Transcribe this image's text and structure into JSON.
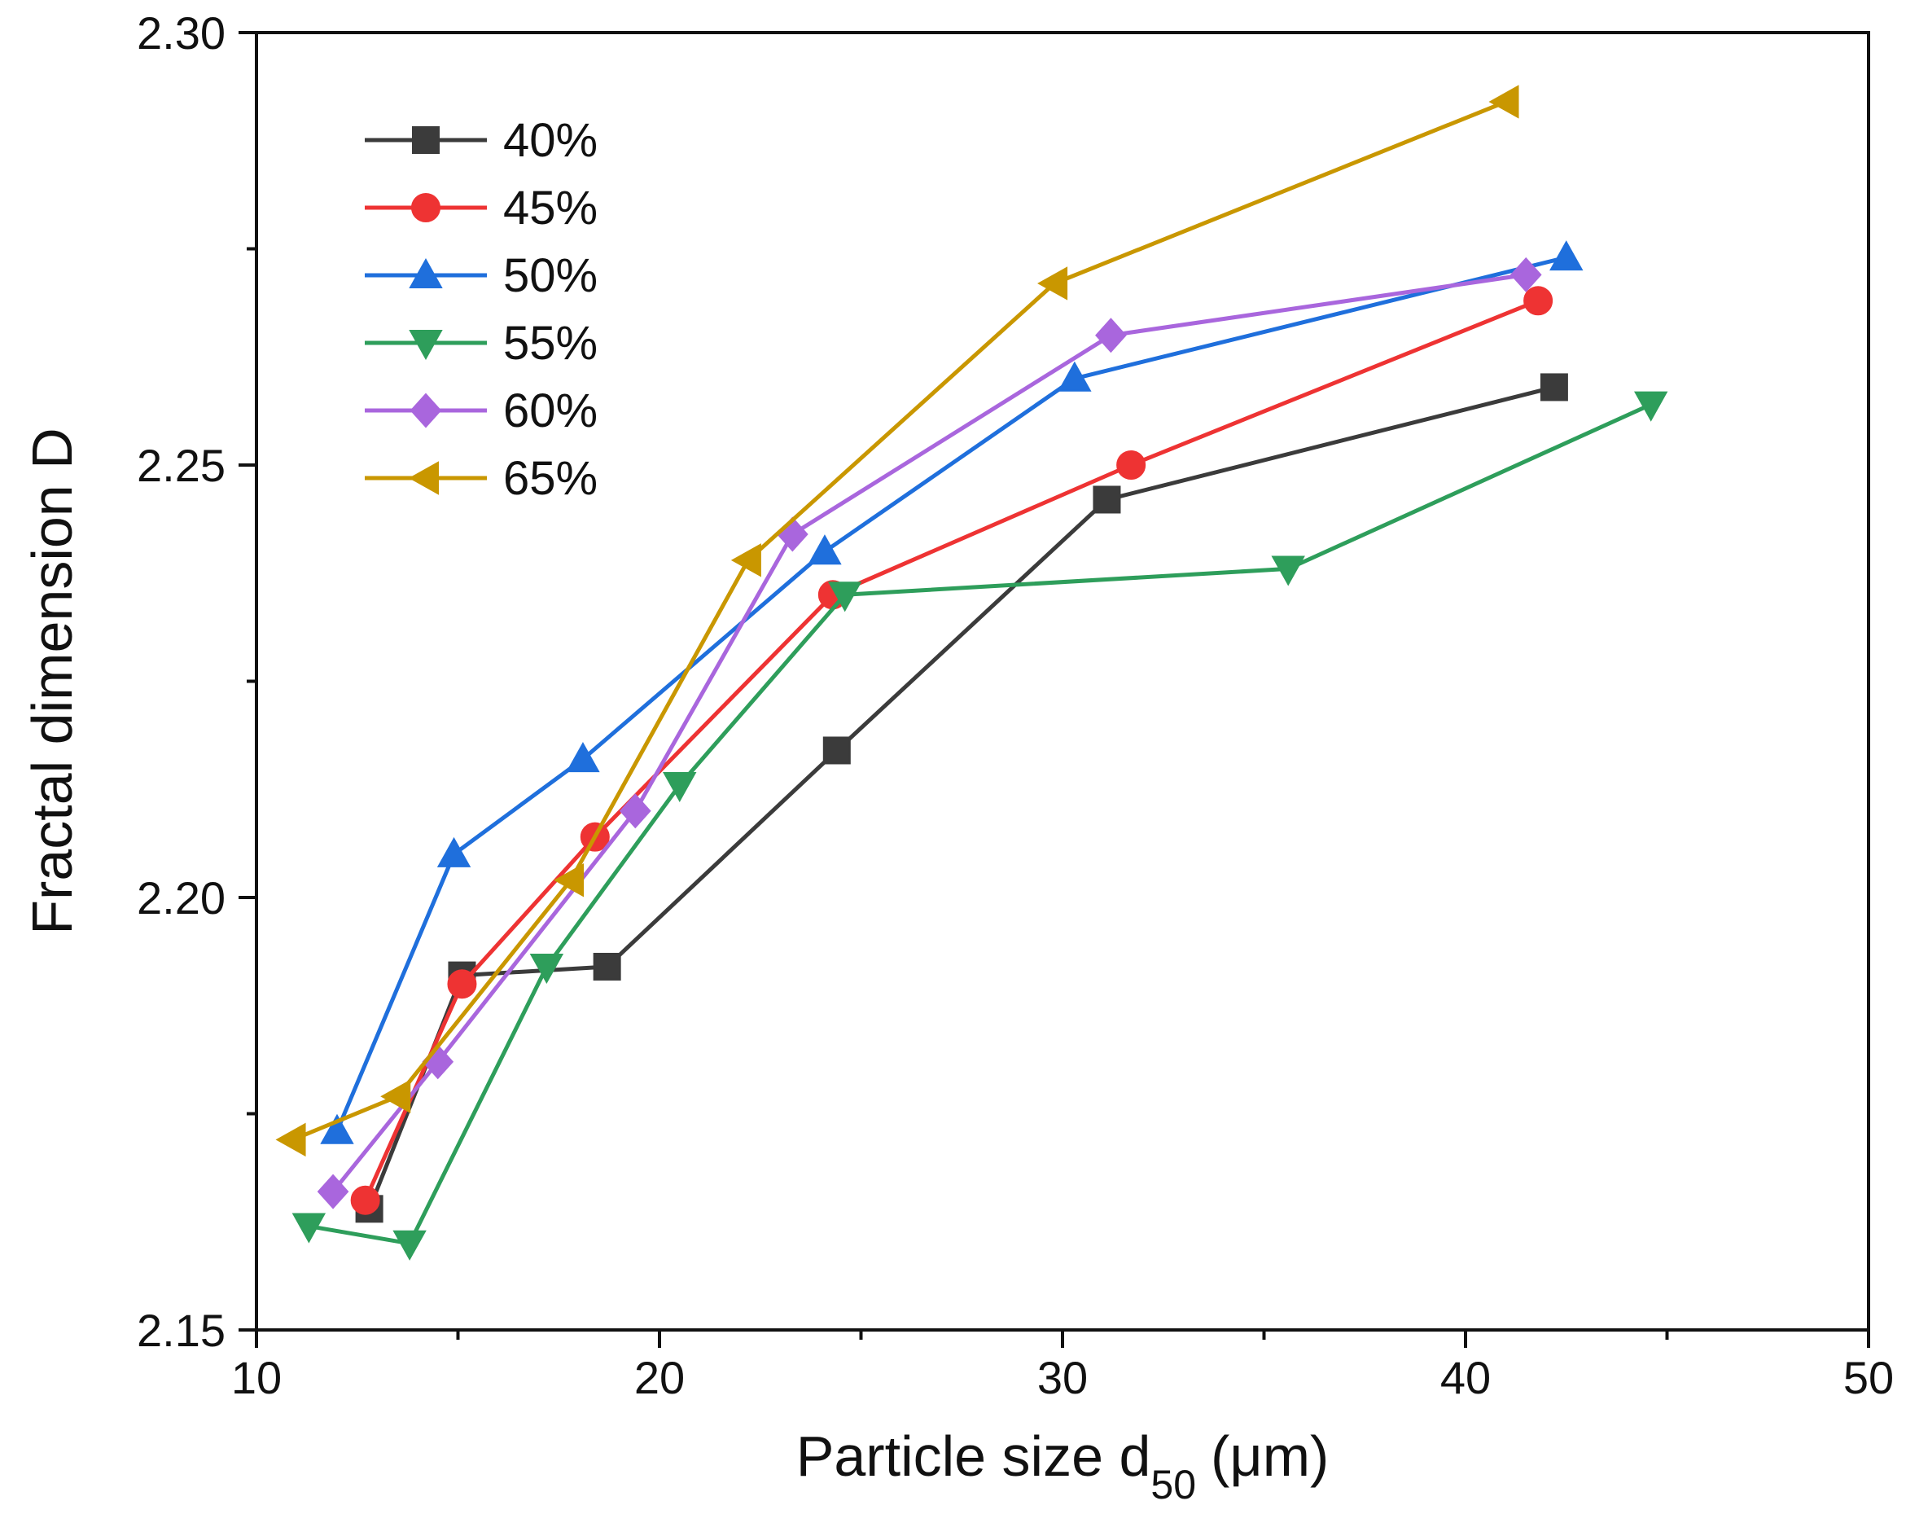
{
  "chart_data": {
    "type": "line",
    "title": "",
    "xlabel": "Particle size d",
    "xlabel_sub": "50",
    "xlabel_unit": "(μm)",
    "ylabel": "Fractal dimension D",
    "xlim": [
      10,
      50
    ],
    "ylim": [
      2.15,
      2.3
    ],
    "x_ticks": [
      10,
      20,
      30,
      40,
      50
    ],
    "x_tick_labels": [
      "10",
      "20",
      "30",
      "40",
      "50"
    ],
    "x_minor_ticks": [
      15,
      25,
      35,
      45
    ],
    "y_ticks": [
      2.15,
      2.2,
      2.25,
      2.3
    ],
    "y_tick_labels": [
      "2.15",
      "2.20",
      "2.25",
      "2.30"
    ],
    "y_minor_ticks": [
      2.175,
      2.225,
      2.275
    ],
    "grid": false,
    "legend_position": "top-left",
    "series": [
      {
        "name": "40%",
        "color": "#3b3b3b",
        "marker": "square",
        "x": [
          12.8,
          15.1,
          18.7,
          24.4,
          31.1,
          42.2
        ],
        "y": [
          2.164,
          2.191,
          2.192,
          2.217,
          2.246,
          2.259
        ]
      },
      {
        "name": "45%",
        "color": "#ee3333",
        "marker": "circle",
        "x": [
          12.7,
          15.1,
          18.4,
          24.3,
          31.7,
          41.8
        ],
        "y": [
          2.165,
          2.19,
          2.207,
          2.235,
          2.25,
          2.269
        ]
      },
      {
        "name": "50%",
        "color": "#1f6fdc",
        "marker": "triangle-up",
        "x": [
          12.0,
          14.9,
          18.1,
          24.1,
          30.3,
          42.5
        ],
        "y": [
          2.173,
          2.205,
          2.216,
          2.24,
          2.26,
          2.274
        ]
      },
      {
        "name": "55%",
        "color": "#2e9e5b",
        "marker": "triangle-down",
        "x": [
          11.3,
          13.8,
          17.2,
          20.5,
          24.6,
          35.6,
          44.6
        ],
        "y": [
          2.162,
          2.16,
          2.192,
          2.213,
          2.235,
          2.238,
          2.257
        ]
      },
      {
        "name": "60%",
        "color": "#a966dd",
        "marker": "diamond",
        "x": [
          11.9,
          14.5,
          19.4,
          23.3,
          31.2,
          41.5
        ],
        "y": [
          2.166,
          2.181,
          2.21,
          2.242,
          2.265,
          2.272
        ]
      },
      {
        "name": "65%",
        "color": "#c99700",
        "marker": "triangle-left",
        "x": [
          10.9,
          13.5,
          17.8,
          22.2,
          29.8,
          41.0
        ],
        "y": [
          2.172,
          2.177,
          2.202,
          2.239,
          2.271,
          2.292
        ]
      }
    ]
  }
}
